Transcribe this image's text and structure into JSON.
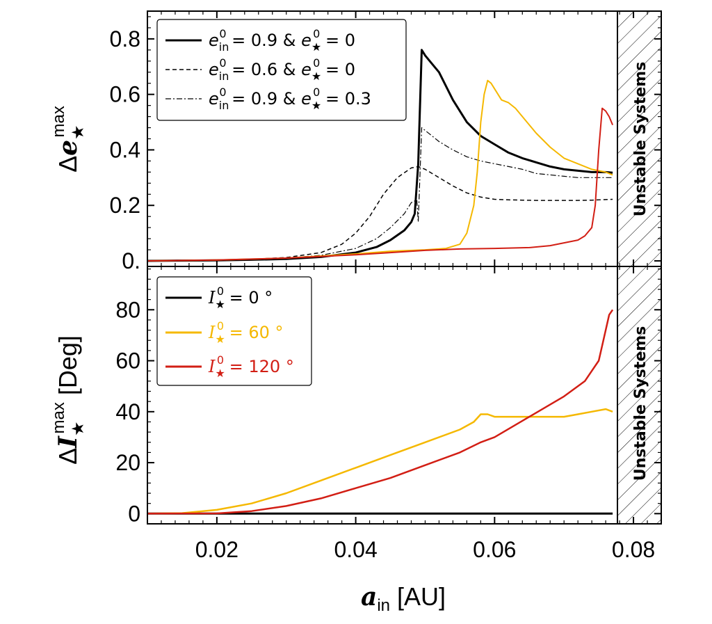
{
  "colors": {
    "black": "#000000",
    "yellow": "#f5b800",
    "red": "#d21e14"
  },
  "chart_data": [
    {
      "type": "line",
      "panel": "top",
      "ylabel": "Δe★max",
      "ylabel_parts": {
        "delta": "Δ",
        "sym": "e",
        "sub": "★",
        "sup": "max"
      },
      "xlim": [
        0.01,
        0.084
      ],
      "ylim": [
        -0.02,
        0.9
      ],
      "yticks": [
        0.0,
        0.2,
        0.4,
        0.6,
        0.8
      ],
      "ytick_labels": [
        "0.",
        "0.2",
        "0.4",
        "0.6",
        "0.8"
      ],
      "legend": {
        "placement": "top-left",
        "entries": [
          {
            "label": "e_in^0 = 0.9 & e★^0 = 0",
            "text_a": "e",
            "sub_a": "in",
            "sup_a": "0",
            "mid": " = 0.9 & ",
            "text_b": "e",
            "sub_b": "★",
            "sup_b": "0",
            "end": " = 0",
            "style": "solid-thick"
          },
          {
            "label": "e_in^0 = 0.6 & e★^0 = 0",
            "text_a": "e",
            "sub_a": "in",
            "sup_a": "0",
            "mid": " = 0.6 & ",
            "text_b": "e",
            "sub_b": "★",
            "sup_b": "0",
            "end": " = 0",
            "style": "dashed"
          },
          {
            "label": "e_in^0 = 0.9 & e★^0 = 0.3",
            "text_a": "e",
            "sub_a": "in",
            "sup_a": "0",
            "mid": " = 0.9 & ",
            "text_b": "e",
            "sub_b": "★",
            "sup_b": "0",
            "end": " = 0.3",
            "style": "dashdot"
          }
        ]
      },
      "series": [
        {
          "color": "#000000",
          "style": "solid",
          "width": 3,
          "x": [
            0.01,
            0.015,
            0.02,
            0.025,
            0.03,
            0.035,
            0.04,
            0.043,
            0.045,
            0.047,
            0.048,
            0.0485,
            0.049,
            0.0495,
            0.05,
            0.051,
            0.052,
            0.054,
            0.056,
            0.058,
            0.06,
            0.062,
            0.064,
            0.066,
            0.068,
            0.07,
            0.072,
            0.074,
            0.076,
            0.077
          ],
          "y": [
            0.0,
            0.001,
            0.002,
            0.004,
            0.007,
            0.014,
            0.03,
            0.05,
            0.075,
            0.11,
            0.14,
            0.17,
            0.35,
            0.76,
            0.74,
            0.71,
            0.68,
            0.58,
            0.5,
            0.45,
            0.42,
            0.39,
            0.37,
            0.355,
            0.34,
            0.33,
            0.325,
            0.32,
            0.32,
            0.318
          ]
        },
        {
          "color": "#000000",
          "style": "dashed",
          "width": 1.5,
          "x": [
            0.01,
            0.02,
            0.025,
            0.03,
            0.035,
            0.038,
            0.04,
            0.042,
            0.044,
            0.046,
            0.048,
            0.049,
            0.05,
            0.052,
            0.054,
            0.056,
            0.058,
            0.06,
            0.062,
            0.064,
            0.066,
            0.068,
            0.07,
            0.072,
            0.074,
            0.076,
            0.077
          ],
          "y": [
            0.0,
            0.003,
            0.006,
            0.012,
            0.03,
            0.06,
            0.1,
            0.16,
            0.24,
            0.3,
            0.335,
            0.34,
            0.33,
            0.3,
            0.27,
            0.245,
            0.23,
            0.222,
            0.22,
            0.219,
            0.218,
            0.218,
            0.218,
            0.218,
            0.219,
            0.221,
            0.222
          ]
        },
        {
          "color": "#000000",
          "style": "dashdot",
          "width": 1.2,
          "x": [
            0.01,
            0.02,
            0.03,
            0.035,
            0.04,
            0.043,
            0.045,
            0.047,
            0.048,
            0.0488,
            0.049,
            0.0495,
            0.05,
            0.052,
            0.054,
            0.056,
            0.058,
            0.06,
            0.062,
            0.064,
            0.066,
            0.068,
            0.07,
            0.072,
            0.074,
            0.076,
            0.077
          ],
          "y": [
            0.0,
            0.002,
            0.01,
            0.02,
            0.045,
            0.08,
            0.12,
            0.17,
            0.21,
            0.22,
            0.14,
            0.48,
            0.47,
            0.43,
            0.4,
            0.375,
            0.36,
            0.35,
            0.34,
            0.33,
            0.315,
            0.31,
            0.305,
            0.3,
            0.3,
            0.3,
            0.3
          ]
        },
        {
          "color": "#f5b800",
          "style": "solid",
          "width": 2,
          "x": [
            0.01,
            0.02,
            0.03,
            0.04,
            0.045,
            0.05,
            0.053,
            0.055,
            0.056,
            0.057,
            0.0575,
            0.058,
            0.0585,
            0.059,
            0.0595,
            0.06,
            0.061,
            0.062,
            0.063,
            0.064,
            0.066,
            0.068,
            0.07,
            0.072,
            0.074,
            0.076,
            0.077
          ],
          "y": [
            0.0,
            0.003,
            0.01,
            0.025,
            0.035,
            0.04,
            0.045,
            0.06,
            0.1,
            0.2,
            0.32,
            0.5,
            0.6,
            0.65,
            0.64,
            0.62,
            0.58,
            0.57,
            0.55,
            0.52,
            0.46,
            0.41,
            0.37,
            0.35,
            0.33,
            0.32,
            0.31
          ]
        },
        {
          "color": "#d21e14",
          "style": "solid",
          "width": 2,
          "x": [
            0.01,
            0.02,
            0.03,
            0.04,
            0.045,
            0.05,
            0.055,
            0.06,
            0.065,
            0.068,
            0.07,
            0.072,
            0.073,
            0.074,
            0.0745,
            0.075,
            0.0755,
            0.076,
            0.0765,
            0.077
          ],
          "y": [
            0.0,
            0.003,
            0.01,
            0.022,
            0.03,
            0.038,
            0.043,
            0.045,
            0.048,
            0.055,
            0.065,
            0.075,
            0.09,
            0.12,
            0.2,
            0.4,
            0.55,
            0.54,
            0.52,
            0.49
          ]
        }
      ]
    },
    {
      "type": "line",
      "panel": "bottom",
      "ylabel": "ΔI★max [Deg]",
      "ylabel_parts": {
        "delta": "Δ",
        "sym": "I",
        "sub": "★",
        "sup": "max",
        "unit": " [Deg]"
      },
      "xlabel": "a_in [AU]",
      "xlabel_parts": {
        "sym": "a",
        "sub": "in",
        "unit": " [AU]"
      },
      "xlim": [
        0.01,
        0.084
      ],
      "ylim": [
        -4,
        97
      ],
      "yticks": [
        0,
        20,
        40,
        60,
        80
      ],
      "ytick_labels": [
        "0",
        "20",
        "40",
        "60",
        "80"
      ],
      "xticks": [
        0.02,
        0.04,
        0.06,
        0.08
      ],
      "xtick_labels": [
        "0.02",
        "0.04",
        "0.06",
        "0.08"
      ],
      "legend": {
        "placement": "top-left",
        "entries": [
          {
            "label": "I★^0 = 0°",
            "sym": "I",
            "sub": "★",
            "sup": "0",
            "end": " = 0 °",
            "color": "#000000"
          },
          {
            "label": "I★^0 = 60°",
            "sym": "I",
            "sub": "★",
            "sup": "0",
            "end": " = 60 °",
            "color": "#f5b800"
          },
          {
            "label": "I★^0 = 120°",
            "sym": "I",
            "sub": "★",
            "sup": "0",
            "end": " = 120 °",
            "color": "#d21e14"
          }
        ]
      },
      "series": [
        {
          "color": "#000000",
          "style": "solid",
          "width": 3,
          "x": [
            0.01,
            0.077
          ],
          "y": [
            0,
            0
          ]
        },
        {
          "color": "#f5b800",
          "style": "solid",
          "width": 2.5,
          "x": [
            0.01,
            0.015,
            0.02,
            0.025,
            0.03,
            0.035,
            0.04,
            0.045,
            0.05,
            0.055,
            0.057,
            0.058,
            0.059,
            0.06,
            0.062,
            0.064,
            0.066,
            0.068,
            0.07,
            0.072,
            0.074,
            0.076,
            0.077
          ],
          "y": [
            0,
            0.2,
            1.5,
            4,
            8,
            13,
            18,
            23,
            28,
            33,
            36,
            39,
            39,
            38,
            38,
            38,
            38,
            38,
            38,
            39,
            40,
            41,
            40
          ]
        },
        {
          "color": "#d21e14",
          "style": "solid",
          "width": 2.5,
          "x": [
            0.01,
            0.02,
            0.025,
            0.03,
            0.035,
            0.04,
            0.045,
            0.05,
            0.055,
            0.058,
            0.06,
            0.065,
            0.07,
            0.073,
            0.074,
            0.075,
            0.0755,
            0.076,
            0.0765,
            0.077
          ],
          "y": [
            0,
            0.1,
            1,
            3,
            6,
            10,
            14,
            19,
            24,
            28,
            30,
            38,
            46,
            52,
            56,
            60,
            66,
            72,
            78,
            80
          ]
        }
      ]
    }
  ],
  "unstable_label": "Unstable Systems"
}
